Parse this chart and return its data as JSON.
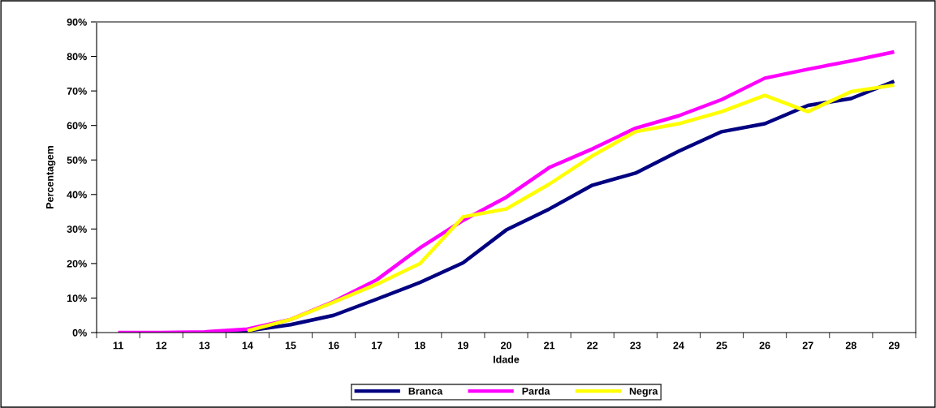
{
  "chart_data": {
    "type": "line",
    "xlabel": "Idade",
    "ylabel": "Percentagem",
    "categories": [
      "11",
      "12",
      "13",
      "14",
      "15",
      "16",
      "17",
      "18",
      "19",
      "20",
      "21",
      "22",
      "23",
      "24",
      "25",
      "26",
      "27",
      "28",
      "29"
    ],
    "series": [
      {
        "name": "Branca",
        "color": "#000080",
        "values": [
          null,
          null,
          0,
          0.5,
          2.3,
          5,
          9.7,
          14.5,
          20.2,
          29.7,
          35.8,
          42.7,
          46.2,
          52.5,
          58.2,
          60.5,
          65.8,
          67.8,
          72.8
        ]
      },
      {
        "name": "Parda",
        "color": "#ff00ff",
        "values": [
          0,
          0,
          0.2,
          1,
          3.8,
          9,
          15.3,
          24.5,
          32.5,
          39.2,
          47.8,
          53.2,
          59.2,
          62.8,
          67.5,
          73.7,
          76.3,
          78.7,
          81.3
        ]
      },
      {
        "name": "Negra",
        "color": "#ffff00",
        "values": [
          null,
          null,
          null,
          0.5,
          3.8,
          8.8,
          14,
          20,
          33.5,
          35.8,
          43,
          51.2,
          58.2,
          60.5,
          64,
          68.7,
          64,
          69.8,
          71.7
        ]
      }
    ],
    "ylim": [
      0,
      90
    ],
    "yticks": [
      {
        "value": 0,
        "label": "0%"
      },
      {
        "value": 10,
        "label": "10%"
      },
      {
        "value": 20,
        "label": "20%"
      },
      {
        "value": 30,
        "label": "30%"
      },
      {
        "value": 40,
        "label": "40%"
      },
      {
        "value": 50,
        "label": "50%"
      },
      {
        "value": 60,
        "label": "60%"
      },
      {
        "value": 70,
        "label": "70%"
      },
      {
        "value": 80,
        "label": "80%"
      },
      {
        "value": 90,
        "label": "90%"
      }
    ],
    "grid": false,
    "legend": "bottom",
    "marker": "none",
    "line_style": "solid"
  }
}
